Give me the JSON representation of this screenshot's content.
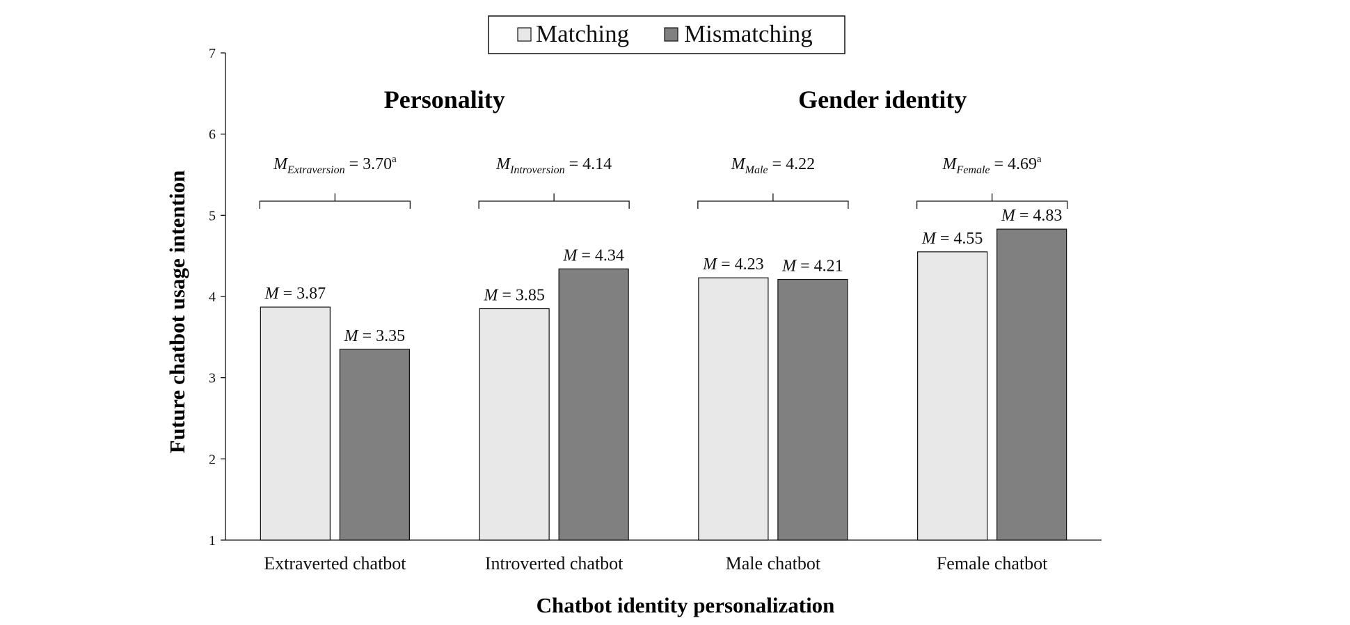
{
  "chart_data": {
    "type": "bar",
    "ylabel": "Future chatbot usage intention",
    "xlabel": "Chatbot identity personalization",
    "ylim": [
      1,
      7
    ],
    "yticks": [
      1,
      2,
      3,
      4,
      5,
      6,
      7
    ],
    "grid": false,
    "legend_position": "top-center",
    "categories": [
      "Extraverted chatbot",
      "Introverted chatbot",
      "Male chatbot",
      "Female chatbot"
    ],
    "series": [
      {
        "name": "Matching",
        "color": "#e8e8e8",
        "values": [
          3.87,
          3.85,
          4.23,
          4.55
        ]
      },
      {
        "name": "Mismatching",
        "color": "#808080",
        "values": [
          3.35,
          4.34,
          4.21,
          4.83
        ]
      }
    ],
    "bar_label_prefix": "M",
    "bar_label_sep": " = ",
    "bar_labels": [
      [
        "3.87",
        "3.85",
        "4.23",
        "4.55"
      ],
      [
        "3.35",
        "4.34",
        "4.21",
        "4.83"
      ]
    ],
    "groups": [
      {
        "title": "Personality",
        "categories": [
          0,
          1
        ]
      },
      {
        "title": "Gender identity",
        "categories": [
          2,
          3
        ]
      }
    ],
    "category_means": [
      {
        "symbol": "M",
        "subscript": "Extraversion",
        "value": "3.70",
        "sup": "a"
      },
      {
        "symbol": "M",
        "subscript": "Introversion",
        "value": "4.14",
        "sup": ""
      },
      {
        "symbol": "M",
        "subscript": "Male",
        "value": "4.22",
        "sup": ""
      },
      {
        "symbol": "M",
        "subscript": "Female",
        "value": "4.69",
        "sup": "a"
      }
    ]
  }
}
